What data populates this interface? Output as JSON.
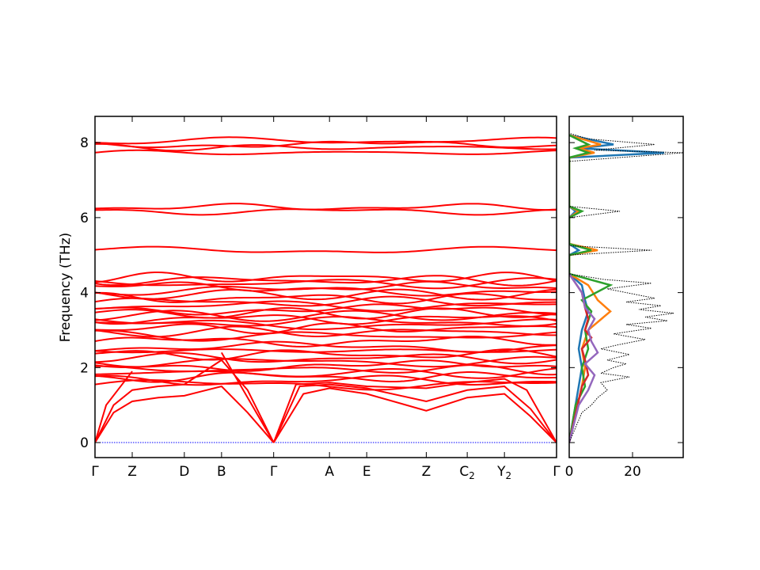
{
  "chart_data": [
    {
      "type": "line",
      "subtype": "phonon-band-structure",
      "title": "",
      "ylabel": "Frequency (THz)",
      "ylim": [
        -0.4,
        8.7
      ],
      "yticks": [
        0,
        2,
        4,
        6,
        8
      ],
      "ytick_labels": [
        "0",
        "2",
        "4",
        "6",
        "8"
      ],
      "line_color": "#ff0000",
      "zero_line_color": "#0000ff",
      "path": [
        {
          "label": "Γ",
          "sub": "",
          "x": 0.0
        },
        {
          "label": "Z",
          "sub": "",
          "x": 0.5
        },
        {
          "label": "D",
          "sub": "",
          "x": 1.2
        },
        {
          "label": "B",
          "sub": "",
          "x": 1.7
        },
        {
          "label": "Γ",
          "sub": "",
          "x": 2.4
        },
        {
          "label": "A",
          "sub": "",
          "x": 3.15
        },
        {
          "label": "E",
          "sub": "",
          "x": 3.65
        },
        {
          "label": "Z",
          "sub": "",
          "x": 4.45
        },
        {
          "label": "C",
          "sub": "2",
          "x": 5.0
        },
        {
          "label": "Y",
          "sub": "2",
          "x": 5.5
        },
        {
          "label": "Γ",
          "sub": "",
          "x": 6.2
        }
      ],
      "acoustic_branches": [
        {
          "x": [
            0,
            0.25,
            0.5,
            0.85,
            1.2,
            1.7,
            2.05,
            2.4
          ],
          "y": [
            0,
            0.8,
            1.1,
            1.2,
            1.25,
            1.5,
            0.8,
            0
          ]
        },
        {
          "x": [
            0,
            0.25,
            0.5,
            0.85,
            1.2,
            1.7,
            2.05,
            2.4
          ],
          "y": [
            0,
            1.0,
            1.4,
            1.5,
            1.55,
            2.2,
            1.4,
            0
          ]
        },
        {
          "x": [
            0,
            0.15,
            0.5
          ],
          "y": [
            0,
            1.0,
            1.9
          ]
        },
        {
          "x": [
            1.7,
            2.05,
            2.4
          ],
          "y": [
            2.4,
            1.2,
            0
          ]
        },
        {
          "x": [
            2.4,
            2.8,
            3.15,
            3.65,
            4.45,
            5.0,
            5.5,
            5.85,
            6.2
          ],
          "y": [
            0,
            1.3,
            1.45,
            1.3,
            0.85,
            1.2,
            1.3,
            0.7,
            0
          ]
        },
        {
          "x": [
            2.4,
            2.75,
            3.15,
            3.65,
            4.45,
            5.0,
            5.5,
            5.85,
            6.2
          ],
          "y": [
            0,
            1.5,
            1.55,
            1.45,
            1.1,
            1.4,
            1.5,
            0.9,
            0
          ]
        },
        {
          "x": [
            2.4,
            2.7,
            3.15,
            3.65,
            4.45,
            5.0,
            5.5,
            5.8,
            6.2
          ],
          "y": [
            0,
            1.55,
            1.6,
            1.5,
            1.45,
            1.6,
            1.7,
            1.4,
            0
          ]
        }
      ],
      "optical_band_levels": [
        1.55,
        1.65,
        1.75,
        1.85,
        1.95,
        2.05,
        2.15,
        2.25,
        2.35,
        2.45,
        2.55,
        2.7,
        2.85,
        2.95,
        3.05,
        3.15,
        3.22,
        3.3,
        3.38,
        3.45,
        3.55,
        3.65,
        3.75,
        3.85,
        3.95,
        4.05,
        4.15,
        4.25,
        4.33,
        4.4,
        5.13,
        6.17,
        6.28,
        7.73,
        7.87,
        7.95,
        8.05
      ]
    },
    {
      "type": "line",
      "subtype": "phonon-dos",
      "xlim": [
        0,
        36
      ],
      "xticks": [
        0,
        20
      ],
      "xtick_labels": [
        "0",
        "20"
      ],
      "ylim": [
        -0.4,
        8.7
      ],
      "yticks": [
        0,
        2,
        4,
        6,
        8
      ],
      "total_dos_color": "#000000",
      "total_dos": {
        "y": [
          0.0,
          0.4,
          0.8,
          1.0,
          1.2,
          1.4,
          1.6,
          1.75,
          1.85,
          2.0,
          2.1,
          2.2,
          2.35,
          2.5,
          2.6,
          2.75,
          2.9,
          3.05,
          3.15,
          3.25,
          3.35,
          3.45,
          3.55,
          3.65,
          3.75,
          3.85,
          3.95,
          4.1,
          4.25,
          4.35,
          4.5,
          5.0,
          5.13,
          5.25,
          5.5,
          6.0,
          6.17,
          6.3,
          6.5,
          7.5,
          7.73,
          7.8,
          7.95,
          8.1,
          8.25
        ],
        "v": [
          0,
          2,
          4,
          7,
          9,
          12,
          10,
          19,
          10,
          14,
          18,
          12,
          19,
          10,
          15,
          24,
          14,
          26,
          18,
          31,
          24,
          33,
          22,
          29,
          18,
          27,
          21,
          12,
          26,
          11,
          0,
          0,
          26,
          0,
          0,
          0,
          16,
          0,
          0,
          0,
          36,
          8,
          27,
          6,
          0
        ]
      },
      "projected_dos": [
        {
          "color": "#1f77b4",
          "y": [
            0.0,
            1.5,
            2.0,
            2.5,
            3.0,
            3.5,
            3.8,
            4.2,
            4.5,
            5.0,
            5.13,
            5.3,
            6.0,
            6.17,
            6.3,
            7.6,
            7.73,
            7.85,
            7.95,
            8.2
          ],
          "v": [
            0,
            3,
            4,
            3,
            4,
            6,
            5,
            4,
            0,
            0,
            3,
            0,
            0,
            2,
            0,
            0,
            30,
            3,
            14,
            0
          ]
        },
        {
          "color": "#ff7f0e",
          "y": [
            0.0,
            1.5,
            2.0,
            2.5,
            3.0,
            3.5,
            3.8,
            4.2,
            4.5,
            5.0,
            5.13,
            5.3,
            6.0,
            6.17,
            6.3,
            7.6,
            7.73,
            7.85,
            7.95,
            8.2
          ],
          "v": [
            0,
            4,
            5,
            4,
            6,
            13,
            9,
            6,
            0,
            0,
            9,
            0,
            0,
            3,
            0,
            0,
            8,
            3,
            10,
            0
          ]
        },
        {
          "color": "#2ca02c",
          "y": [
            0.0,
            1.0,
            1.5,
            2.0,
            2.5,
            3.0,
            3.5,
            3.8,
            4.2,
            4.5,
            5.0,
            5.13,
            5.3,
            6.0,
            6.17,
            6.3,
            7.6,
            7.73,
            7.85,
            7.95,
            8.2
          ],
          "v": [
            0,
            2,
            5,
            4,
            6,
            5,
            7,
            4,
            13,
            0,
            0,
            7,
            0,
            0,
            4,
            0,
            0,
            6,
            2,
            6,
            0
          ]
        },
        {
          "color": "#d62728",
          "y": [
            0.0,
            1.5,
            1.8,
            2.2,
            2.5,
            2.8,
            3.0,
            3.3,
            3.6,
            4.0,
            4.5
          ],
          "v": [
            0,
            4,
            6,
            5,
            4,
            7,
            5,
            6,
            5,
            4,
            0
          ]
        },
        {
          "color": "#9467bd",
          "y": [
            0.0,
            1.0,
            1.4,
            1.8,
            2.1,
            2.4,
            2.7,
            3.0,
            3.3,
            3.6,
            4.0,
            4.5
          ],
          "v": [
            0,
            3,
            6,
            8,
            5,
            9,
            7,
            6,
            8,
            5,
            4,
            0
          ]
        }
      ]
    }
  ]
}
